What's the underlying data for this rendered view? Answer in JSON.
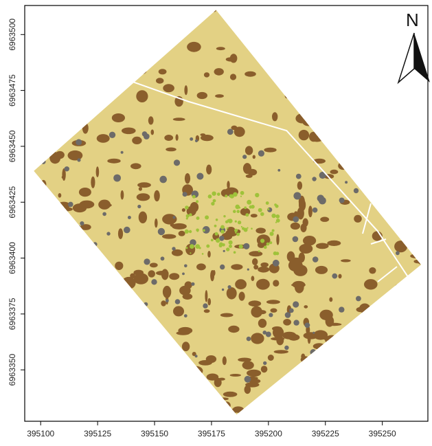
{
  "map": {
    "north_label": "N",
    "x_ticks": [
      {
        "value": 395100,
        "label": "395100"
      },
      {
        "value": 395125,
        "label": "395125"
      },
      {
        "value": 395150,
        "label": "395150"
      },
      {
        "value": 395175,
        "label": "395175"
      },
      {
        "value": 395200,
        "label": "395200"
      },
      {
        "value": 395225,
        "label": "395225"
      },
      {
        "value": 395250,
        "label": "395250"
      }
    ],
    "y_ticks": [
      {
        "value": 6963350,
        "label": "6963350"
      },
      {
        "value": 6963375,
        "label": "6963375"
      },
      {
        "value": 6963400,
        "label": "6963400"
      },
      {
        "value": 6963425,
        "label": "6963425"
      },
      {
        "value": 6963450,
        "label": "6963450"
      },
      {
        "value": 6963475,
        "label": "6963475"
      },
      {
        "value": 6963500,
        "label": "6963500"
      }
    ],
    "x_range": [
      395093,
      395270
    ],
    "y_range": [
      6963327,
      6963513
    ],
    "study_area_corners": [
      [
        395177,
        6963511
      ],
      [
        395267,
        6963397
      ],
      [
        395186,
        6963330
      ],
      [
        395097,
        6963439
      ]
    ],
    "path_line": [
      [
        395140,
        6963479
      ],
      [
        395165,
        6963470
      ],
      [
        395208,
        6963457
      ],
      [
        395248,
        6963412
      ],
      [
        395261,
        6963392
      ]
    ],
    "colors": {
      "bare_soil": "#e3d184",
      "dark_patches": "#8a5e2c",
      "gray_patches": "#6d6b69",
      "vegetation": "#9fc23a",
      "path": "#ffffff",
      "frame": "#000000"
    }
  }
}
